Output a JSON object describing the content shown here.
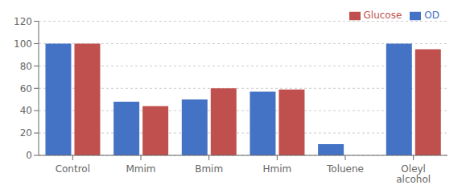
{
  "chart_data": {
    "type": "bar",
    "categories": [
      "Control",
      "Mmim",
      "Bmim",
      "Hmim",
      "Toluene",
      "Oleyl\nalcohol"
    ],
    "series": [
      {
        "name": "OD",
        "color": "#4472C4",
        "values": [
          100,
          48,
          50,
          57,
          10,
          100
        ]
      },
      {
        "name": "Glucose",
        "color": "#C0504D",
        "values": [
          100,
          44,
          60,
          59,
          0,
          95
        ]
      }
    ],
    "ylim": [
      0,
      120
    ],
    "yticks": [
      0,
      20,
      40,
      60,
      80,
      100,
      120
    ],
    "grid": true,
    "legend": "upper right"
  }
}
